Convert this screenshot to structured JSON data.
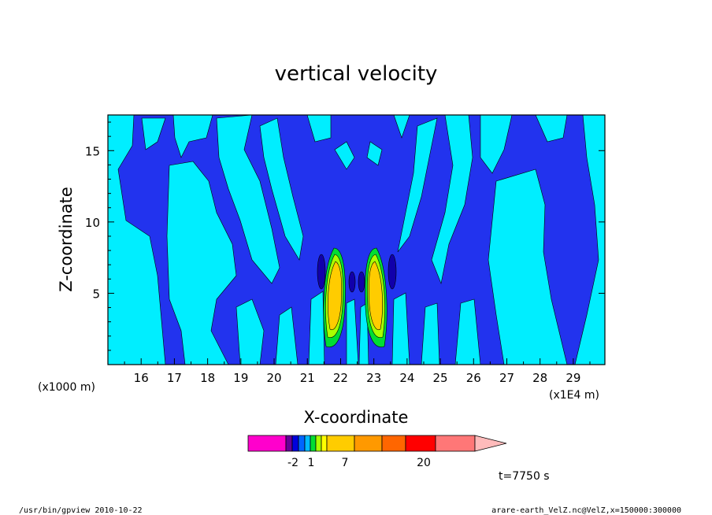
{
  "chart_data": {
    "type": "heatmap",
    "title": "vertical velocity",
    "xlabel": "X-coordinate",
    "ylabel": "Z-coordinate",
    "x_unit_left": "(x1000 m)",
    "x_unit_right": "(x1E4 m)",
    "x_ticks": [
      "16",
      "17",
      "18",
      "19",
      "20",
      "21",
      "22",
      "23",
      "24",
      "25",
      "26",
      "27",
      "28",
      "29"
    ],
    "y_ticks": [
      "5",
      "10",
      "15"
    ],
    "xlim": [
      15.0,
      29.95
    ],
    "ylim": [
      0.0,
      17.5
    ],
    "colorbar": {
      "levels_shown": [
        "-2",
        "1",
        "7",
        "20"
      ],
      "colors": [
        "#ff00cc",
        "#ff33aa",
        "#660099",
        "#0000dd",
        "#0066ff",
        "#00bbff",
        "#00dd33",
        "#aaff00",
        "#ffff00",
        "#ffcc00",
        "#ff9900",
        "#ff6600",
        "#ff0000",
        "#ff7777",
        "#ffbbbb"
      ]
    },
    "field_colors": {
      "background": "#2233ee",
      "weak_positive": "#00eeff",
      "moderate": "#00dd33",
      "mid": "#aaff00",
      "strong": "#ffcc00",
      "negative": "#1100aa"
    },
    "time_label": "t=7750 s"
  },
  "footer": {
    "left": "/usr/bin/gpview   2010-10-22",
    "right": "arare-earth_VelZ.nc@VelZ,x=150000:300000"
  }
}
